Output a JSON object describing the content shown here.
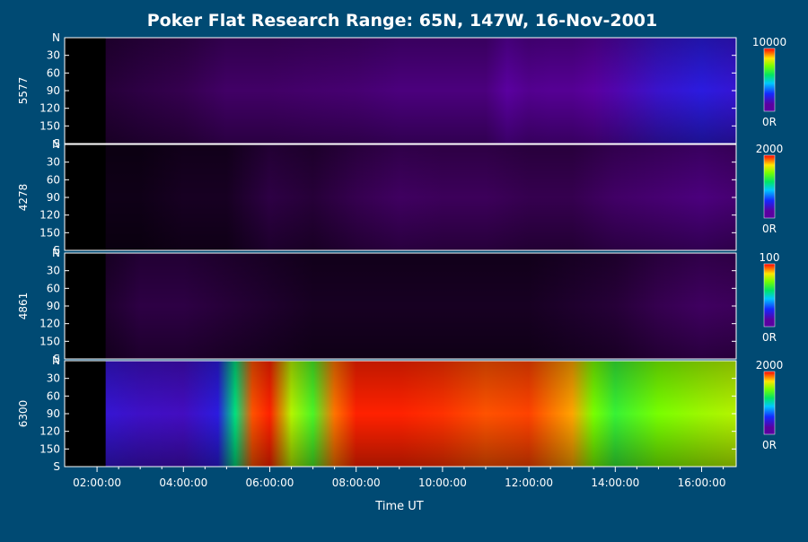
{
  "chart_data": {
    "type": "heatmap",
    "title": "Poker Flat Research Range: 65N, 147W, 16-Nov-2001",
    "xlabel": "Time UT",
    "xlim": [
      1.25,
      16.8
    ],
    "x_ticks": [
      "02:00:00",
      "04:00:00",
      "06:00:00",
      "08:00:00",
      "10:00:00",
      "12:00:00",
      "14:00:00",
      "16:00:00"
    ],
    "x_tick_hours": [
      2,
      4,
      6,
      8,
      10,
      12,
      14,
      16
    ],
    "y_tick_labels": [
      "N",
      "30",
      "60",
      "90",
      "120",
      "150",
      "S"
    ],
    "y_tick_values": [
      0,
      30,
      60,
      90,
      120,
      150,
      180
    ],
    "ylim": [
      0,
      180
    ],
    "colorbar_min_label": "0R",
    "panels": [
      {
        "wavelength": "5577",
        "colorbar_max": "10000",
        "data_start_hour": 2.2,
        "max_level": 0.32,
        "hours": [
          2.2,
          3,
          4,
          5,
          6,
          7,
          8,
          9,
          10,
          11,
          11.5,
          12,
          12.5,
          13,
          13.5,
          14,
          15,
          16,
          16.8
        ],
        "levels": [
          0.05,
          0.06,
          0.07,
          0.1,
          0.1,
          0.11,
          0.12,
          0.14,
          0.14,
          0.14,
          0.2,
          0.17,
          0.18,
          0.18,
          0.2,
          0.22,
          0.27,
          0.3,
          0.28
        ]
      },
      {
        "wavelength": "4278",
        "colorbar_max": "2000",
        "data_start_hour": 2.2,
        "max_level": 0.45,
        "hours": [
          2.2,
          3,
          4,
          5,
          6,
          7,
          8,
          9,
          10,
          11,
          12,
          13,
          14,
          15,
          16,
          16.8
        ],
        "levels": [
          0.02,
          0.02,
          0.03,
          0.03,
          0.06,
          0.05,
          0.07,
          0.09,
          0.08,
          0.08,
          0.07,
          0.07,
          0.1,
          0.12,
          0.14,
          0.12
        ]
      },
      {
        "wavelength": "4861",
        "colorbar_max": "100",
        "data_start_hour": 2.2,
        "max_level": 0.3,
        "hours": [
          2.2,
          3,
          4,
          5,
          6,
          7,
          8,
          9,
          10,
          11,
          12,
          13,
          14,
          15,
          16,
          16.8
        ],
        "levels": [
          0.04,
          0.06,
          0.06,
          0.05,
          0.04,
          0.03,
          0.03,
          0.03,
          0.03,
          0.03,
          0.03,
          0.04,
          0.05,
          0.07,
          0.09,
          0.08
        ]
      },
      {
        "wavelength": "6300",
        "colorbar_max": "2000",
        "data_start_hour": 2.2,
        "max_level": 1.0,
        "hours": [
          2.2,
          3,
          4,
          4.8,
          5.2,
          5.6,
          6,
          6.5,
          7,
          7.5,
          8,
          9,
          10,
          11,
          12,
          13,
          13.5,
          14,
          15,
          16,
          16.8
        ],
        "levels": [
          0.28,
          0.26,
          0.25,
          0.3,
          0.6,
          0.95,
          0.98,
          0.8,
          0.7,
          0.93,
          0.98,
          0.98,
          0.97,
          0.95,
          0.96,
          0.9,
          0.75,
          0.68,
          0.75,
          0.78,
          0.8
        ]
      }
    ]
  }
}
